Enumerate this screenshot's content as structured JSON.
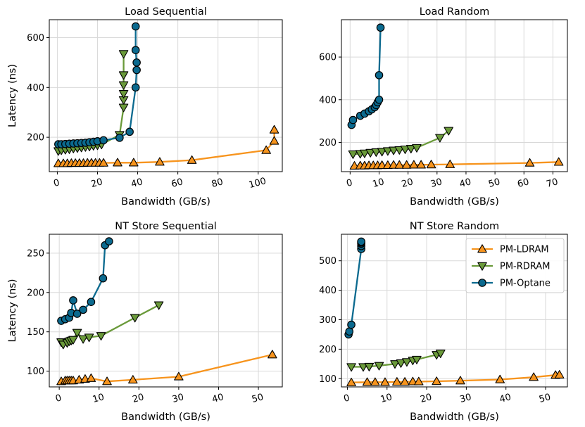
{
  "colors": {
    "ldram": "#f7941d",
    "rdram": "#6a9a3a",
    "optane": "#0b6a8f",
    "grid": "#d9d9d9"
  },
  "legend": {
    "items": [
      {
        "key": "ldram",
        "label": "PM-LDRAM"
      },
      {
        "key": "rdram",
        "label": "PM-RDRAM"
      },
      {
        "key": "optane",
        "label": "PM-Optane"
      }
    ]
  },
  "chart_data": [
    {
      "type": "line",
      "title": "Load Sequential",
      "xlabel": "Bandwidth (GB/s)",
      "ylabel": "Latency (ns)",
      "xlim": [
        -4,
        112
      ],
      "ylim": [
        62,
        672
      ],
      "xticks": [
        0,
        20,
        40,
        60,
        80,
        100
      ],
      "yticks": [
        200,
        400,
        600
      ],
      "grid": true,
      "series": [
        {
          "name": "PM-LDRAM",
          "key": "ldram",
          "marker": "triangle-up",
          "x": [
            0.5,
            3,
            5,
            7,
            9,
            11,
            13,
            15,
            17,
            19,
            21,
            23,
            30,
            38,
            51,
            67,
            104,
            108,
            108
          ],
          "y": [
            95,
            95,
            95,
            96,
            96,
            96,
            96,
            97,
            97,
            97,
            97,
            97,
            98,
            98,
            101,
            108,
            148,
            185,
            230
          ]
        },
        {
          "name": "PM-RDRAM",
          "key": "rdram",
          "marker": "triangle-down",
          "x": [
            0.5,
            2,
            4,
            6,
            8,
            10,
            12,
            14,
            16,
            18,
            20,
            22,
            31,
            33,
            33,
            33,
            33,
            33,
            33
          ],
          "y": [
            145,
            148,
            150,
            152,
            155,
            157,
            159,
            161,
            163,
            166,
            168,
            171,
            210,
            320,
            350,
            375,
            410,
            450,
            535
          ]
        },
        {
          "name": "PM-Optane",
          "key": "optane",
          "marker": "circle",
          "x": [
            0.5,
            2,
            4,
            6,
            8,
            10,
            12,
            14,
            16,
            18,
            20,
            23,
            31,
            36,
            39,
            39.5,
            39.5,
            39,
            39
          ],
          "y": [
            172,
            172,
            173,
            174,
            175,
            176,
            177,
            178,
            180,
            182,
            184,
            188,
            198,
            222,
            400,
            470,
            500,
            550,
            645
          ]
        }
      ]
    },
    {
      "type": "line",
      "title": "Load Random",
      "xlabel": "Bandwidth (GB/s)",
      "ylabel": "",
      "xlim": [
        -3,
        75
      ],
      "ylim": [
        63,
        775
      ],
      "xticks": [
        0,
        10,
        20,
        30,
        40,
        50,
        60,
        70
      ],
      "yticks": [
        200,
        400,
        600
      ],
      "grid": true,
      "series": [
        {
          "name": "PM-LDRAM",
          "key": "ldram",
          "marker": "triangle-up",
          "x": [
            1.5,
            3.5,
            5,
            6.5,
            8,
            9.5,
            11,
            13,
            15,
            17,
            19.5,
            22,
            24.5,
            28,
            34.5,
            62,
            72
          ],
          "y": [
            90,
            91,
            91,
            92,
            92,
            92,
            93,
            93,
            94,
            94,
            94,
            95,
            95,
            96,
            97,
            104,
            108
          ]
        },
        {
          "name": "PM-RDRAM",
          "key": "rdram",
          "marker": "triangle-down",
          "x": [
            1,
            3.5,
            5,
            7,
            9,
            11,
            13,
            15,
            17,
            19,
            21,
            23,
            31,
            34
          ],
          "y": [
            145,
            147,
            149,
            152,
            155,
            157,
            160,
            163,
            165,
            168,
            171,
            175,
            222,
            255
          ]
        },
        {
          "name": "PM-Optane",
          "key": "optane",
          "marker": "circle",
          "x": [
            0.5,
            1,
            3.5,
            5,
            6.5,
            7.5,
            8.5,
            9,
            9.5,
            10,
            10,
            10.5
          ],
          "y": [
            282,
            305,
            325,
            335,
            346,
            355,
            365,
            375,
            388,
            400,
            515,
            738
          ]
        }
      ]
    },
    {
      "type": "line",
      "title": "NT Store Sequential",
      "xlabel": "Bandwidth (GB/s)",
      "ylabel": "Latency (ns)",
      "xlim": [
        -2.5,
        56
      ],
      "ylim": [
        80,
        274
      ],
      "xticks": [
        0,
        10,
        20,
        30,
        40,
        50
      ],
      "yticks": [
        100,
        150,
        200,
        250
      ],
      "grid": true,
      "series": [
        {
          "name": "PM-LDRAM",
          "key": "ldram",
          "marker": "triangle-up",
          "x": [
            0.5,
            1.5,
            2,
            2.5,
            3,
            3.5,
            5,
            6.5,
            8,
            12,
            18.5,
            30,
            53.5
          ],
          "y": [
            87,
            88,
            88,
            88,
            88,
            88,
            89,
            90,
            91,
            87,
            89,
            93,
            121
          ]
        },
        {
          "name": "PM-RDRAM",
          "key": "rdram",
          "marker": "triangle-down",
          "x": [
            0.5,
            1,
            2,
            2.5,
            3,
            3.5,
            4.5,
            6,
            7.5,
            10.5,
            19,
            25
          ],
          "y": [
            137,
            134,
            136,
            138,
            139,
            140,
            149,
            141,
            143,
            145,
            168,
            184
          ]
        },
        {
          "name": "PM-Optane",
          "key": "optane",
          "marker": "circle",
          "x": [
            0.5,
            1.5,
            2.5,
            3,
            3.5,
            4.5,
            6,
            8,
            11,
            11.5,
            12.5
          ],
          "y": [
            164,
            166,
            168,
            174,
            190,
            173,
            178,
            188,
            218,
            260,
            265
          ]
        }
      ]
    },
    {
      "type": "line",
      "title": "NT Store Random",
      "xlabel": "Bandwidth (GB/s)",
      "ylabel": "",
      "xlim": [
        -1.5,
        55.5
      ],
      "ylim": [
        72,
        590
      ],
      "xticks": [
        0,
        10,
        20,
        30,
        40,
        50
      ],
      "yticks": [
        100,
        200,
        300,
        400,
        500
      ],
      "grid": true,
      "series": [
        {
          "name": "PM-LDRAM",
          "key": "ldram",
          "marker": "triangle-up",
          "x": [
            1,
            5,
            7,
            9.5,
            12.5,
            14.5,
            16.5,
            18,
            22.5,
            28.5,
            38.5,
            47,
            52.5,
            53.5
          ],
          "y": [
            87,
            88,
            88,
            88,
            89,
            89,
            90,
            90,
            91,
            93,
            97,
            105,
            112,
            113
          ]
        },
        {
          "name": "PM-RDRAM",
          "key": "rdram",
          "marker": "triangle-down",
          "x": [
            1,
            4,
            5.5,
            8,
            12,
            13.5,
            15,
            16.5,
            17.5,
            22.5,
            23.5
          ],
          "y": [
            140,
            140,
            141,
            144,
            150,
            153,
            157,
            162,
            165,
            181,
            186
          ]
        },
        {
          "name": "PM-Optane",
          "key": "optane",
          "marker": "circle",
          "x": [
            0.3,
            0.5,
            1,
            3.5,
            3.5,
            3.5,
            3.5,
            3.5
          ],
          "y": [
            250,
            260,
            283,
            540,
            550,
            558,
            562,
            565
          ]
        }
      ]
    }
  ]
}
